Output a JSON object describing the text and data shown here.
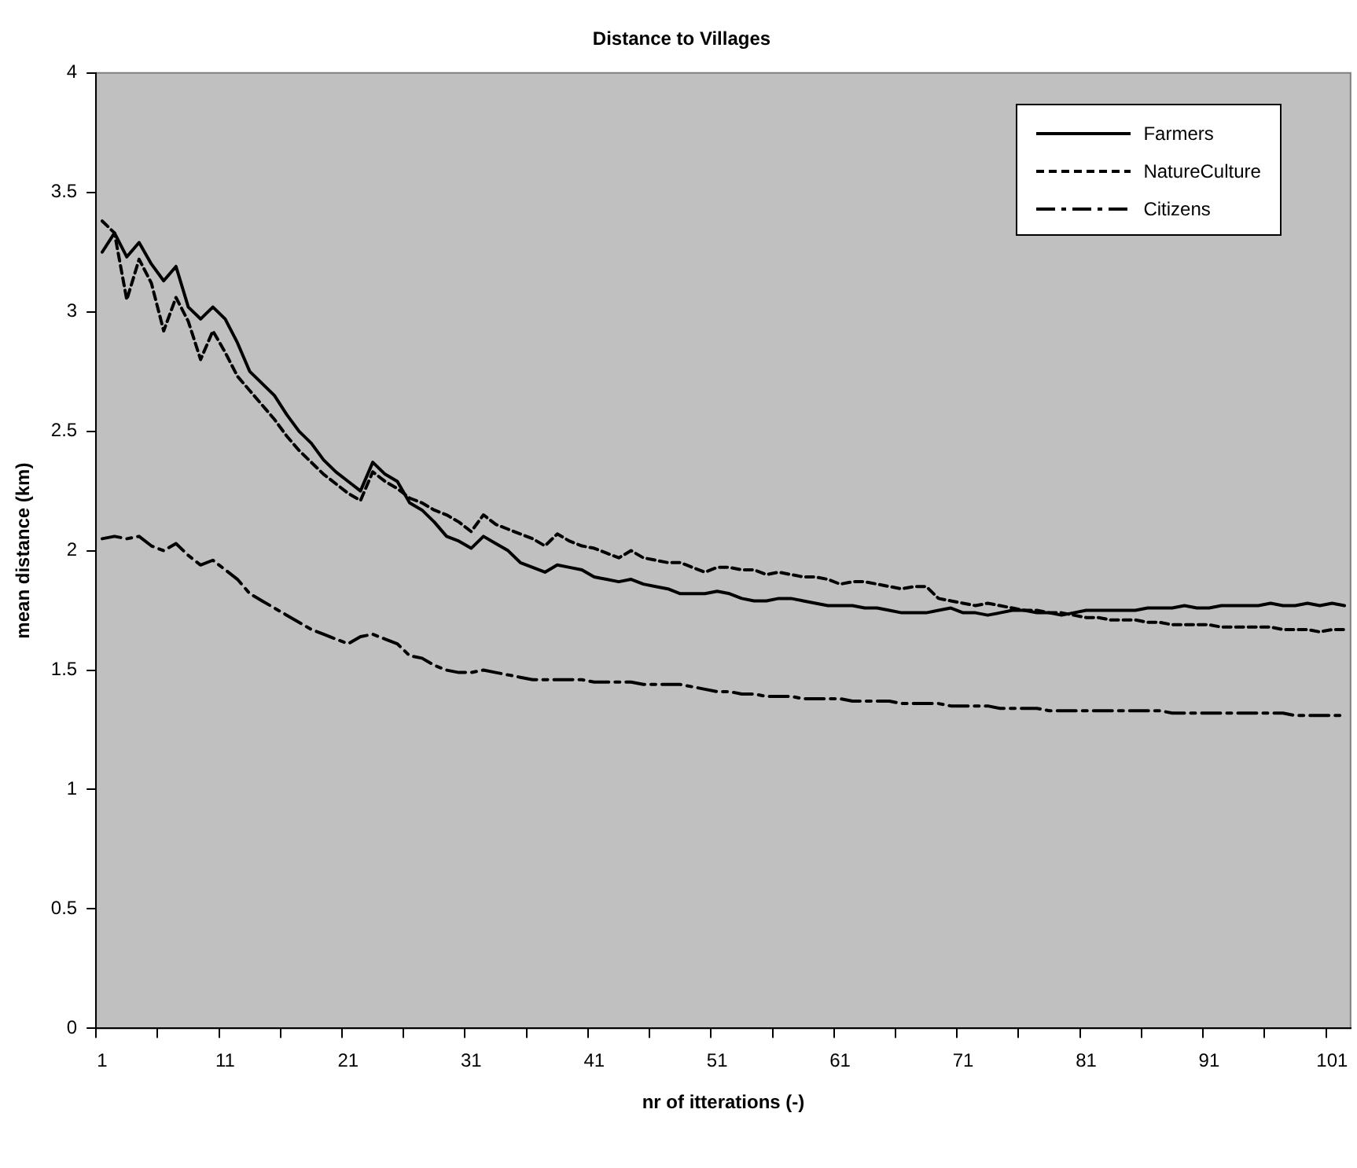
{
  "chart_data": {
    "type": "line",
    "title": "Distance to Villages",
    "xlabel": "nr of itterations (-)",
    "ylabel": "mean distance (km)",
    "categories": [
      "1",
      null,
      null,
      null,
      null,
      null,
      null,
      null,
      null,
      null,
      "11",
      null,
      null,
      null,
      null,
      null,
      null,
      null,
      null,
      null,
      "21",
      null,
      null,
      null,
      null,
      null,
      null,
      null,
      null,
      null,
      "31",
      null,
      null,
      null,
      null,
      null,
      null,
      null,
      null,
      null,
      "41",
      null,
      null,
      null,
      null,
      null,
      null,
      null,
      null,
      null,
      "51",
      null,
      null,
      null,
      null,
      null,
      null,
      null,
      null,
      null,
      "61",
      null,
      null,
      null,
      null,
      null,
      null,
      null,
      null,
      null,
      "71",
      null,
      null,
      null,
      null,
      null,
      null,
      null,
      null,
      null,
      "81",
      null,
      null,
      null,
      null,
      null,
      null,
      null,
      null,
      null,
      "91",
      null,
      null,
      null,
      null,
      null,
      null,
      null,
      null,
      null,
      "101",
      null
    ],
    "ylim": [
      0,
      4
    ],
    "yticks": [
      0,
      0.5,
      1,
      1.5,
      2,
      2.5,
      3,
      3.5,
      4
    ],
    "grid": false,
    "legend": "top right",
    "marker": "none",
    "series": [
      {
        "name": "Farmers",
        "color": "#000000",
        "line_style": "solid",
        "values": [
          3.25,
          3.33,
          3.23,
          3.29,
          3.2,
          3.13,
          3.19,
          3.02,
          2.97,
          3.02,
          2.97,
          2.87,
          2.75,
          2.7,
          2.65,
          2.57,
          2.5,
          2.45,
          2.38,
          2.33,
          2.29,
          2.25,
          2.37,
          2.32,
          2.29,
          2.2,
          2.17,
          2.12,
          2.06,
          2.04,
          2.01,
          2.06,
          2.03,
          2.0,
          1.95,
          1.93,
          1.91,
          1.94,
          1.93,
          1.92,
          1.89,
          1.88,
          1.87,
          1.88,
          1.86,
          1.85,
          1.84,
          1.82,
          1.82,
          1.82,
          1.83,
          1.82,
          1.8,
          1.79,
          1.79,
          1.8,
          1.8,
          1.79,
          1.78,
          1.77,
          1.77,
          1.77,
          1.76,
          1.76,
          1.75,
          1.74,
          1.74,
          1.74,
          1.75,
          1.76,
          1.74,
          1.74,
          1.73,
          1.74,
          1.75,
          1.75,
          1.74,
          1.74,
          1.73,
          1.74,
          1.75,
          1.75,
          1.75,
          1.75,
          1.75,
          1.76,
          1.76,
          1.76,
          1.77,
          1.76,
          1.76,
          1.77,
          1.77,
          1.77,
          1.77,
          1.78,
          1.77,
          1.77,
          1.78,
          1.77,
          1.78,
          1.77
        ]
      },
      {
        "name": "NatureCulture",
        "color": "#000000",
        "line_style": "dashed",
        "values": [
          3.38,
          3.33,
          3.05,
          3.22,
          3.12,
          2.92,
          3.06,
          2.96,
          2.8,
          2.92,
          2.83,
          2.73,
          2.67,
          2.61,
          2.55,
          2.48,
          2.42,
          2.37,
          2.32,
          2.28,
          2.24,
          2.21,
          2.33,
          2.29,
          2.26,
          2.22,
          2.2,
          2.17,
          2.15,
          2.12,
          2.08,
          2.15,
          2.11,
          2.09,
          2.07,
          2.05,
          2.02,
          2.07,
          2.04,
          2.02,
          2.01,
          1.99,
          1.97,
          2.0,
          1.97,
          1.96,
          1.95,
          1.95,
          1.93,
          1.91,
          1.93,
          1.93,
          1.92,
          1.92,
          1.9,
          1.91,
          1.9,
          1.89,
          1.89,
          1.88,
          1.86,
          1.87,
          1.87,
          1.86,
          1.85,
          1.84,
          1.85,
          1.85,
          1.8,
          1.79,
          1.78,
          1.77,
          1.78,
          1.77,
          1.76,
          1.75,
          1.75,
          1.74,
          1.74,
          1.73,
          1.72,
          1.72,
          1.71,
          1.71,
          1.71,
          1.7,
          1.7,
          1.69,
          1.69,
          1.69,
          1.69,
          1.68,
          1.68,
          1.68,
          1.68,
          1.68,
          1.67,
          1.67,
          1.67,
          1.66,
          1.67,
          1.67
        ]
      },
      {
        "name": "Citizens",
        "color": "#000000",
        "line_style": "dashdot",
        "values": [
          2.05,
          2.06,
          2.05,
          2.06,
          2.02,
          2.0,
          2.03,
          1.98,
          1.94,
          1.96,
          1.92,
          1.88,
          1.82,
          1.79,
          1.76,
          1.73,
          1.7,
          1.67,
          1.65,
          1.63,
          1.61,
          1.64,
          1.65,
          1.63,
          1.61,
          1.56,
          1.55,
          1.52,
          1.5,
          1.49,
          1.49,
          1.5,
          1.49,
          1.48,
          1.47,
          1.46,
          1.46,
          1.46,
          1.46,
          1.46,
          1.45,
          1.45,
          1.45,
          1.45,
          1.44,
          1.44,
          1.44,
          1.44,
          1.43,
          1.42,
          1.41,
          1.41,
          1.4,
          1.4,
          1.39,
          1.39,
          1.39,
          1.38,
          1.38,
          1.38,
          1.38,
          1.37,
          1.37,
          1.37,
          1.37,
          1.36,
          1.36,
          1.36,
          1.36,
          1.35,
          1.35,
          1.35,
          1.35,
          1.34,
          1.34,
          1.34,
          1.34,
          1.33,
          1.33,
          1.33,
          1.33,
          1.33,
          1.33,
          1.33,
          1.33,
          1.33,
          1.33,
          1.32,
          1.32,
          1.32,
          1.32,
          1.32,
          1.32,
          1.32,
          1.32,
          1.32,
          1.32,
          1.31,
          1.31,
          1.31,
          1.31,
          1.31
        ]
      }
    ]
  }
}
